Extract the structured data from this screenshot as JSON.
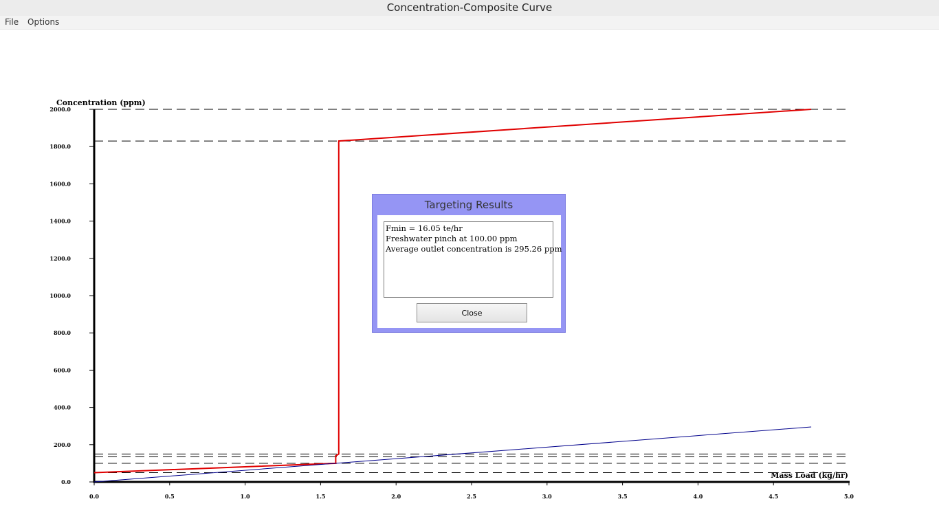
{
  "window": {
    "title": "Concentration-Composite Curve"
  },
  "menu": {
    "items": [
      "File",
      "Options"
    ]
  },
  "dialog": {
    "title": "Targeting Results",
    "lines": [
      "Fmin = 16.05 te/hr",
      "Freshwater pinch at 100.00 ppm",
      "Average outlet concentration is 295.26 ppm"
    ],
    "close_label": "Close",
    "background_color": "#9595f4"
  },
  "chart_data": {
    "type": "line",
    "xlabel": "Mass Load (kg/hr)",
    "ylabel": "Concentration (ppm)",
    "xlim": [
      0,
      5
    ],
    "ylim": [
      0,
      2000
    ],
    "x_ticks": [
      "0.0",
      "0.5",
      "1.0",
      "1.5",
      "2.0",
      "2.5",
      "3.0",
      "3.5",
      "4.0",
      "4.5",
      "5.0"
    ],
    "y_ticks": [
      "0.0",
      "200.0",
      "400.0",
      "600.0",
      "800.0",
      "1000.0",
      "1200.0",
      "1400.0",
      "1600.0",
      "1800.0",
      "2000.0"
    ],
    "reference_lines_y": [
      50,
      100,
      135,
      150,
      1830,
      2000
    ],
    "series": [
      {
        "color": "#e00000",
        "points": [
          [
            0,
            50
          ],
          [
            1.6,
            100
          ],
          [
            1.6,
            140
          ],
          [
            1.62,
            150
          ],
          [
            1.62,
            1830
          ],
          [
            4.75,
            2000
          ]
        ]
      },
      {
        "color": "#00008b",
        "points": [
          [
            0,
            0
          ],
          [
            1.6,
            100
          ],
          [
            4.75,
            295.26
          ]
        ]
      }
    ]
  }
}
